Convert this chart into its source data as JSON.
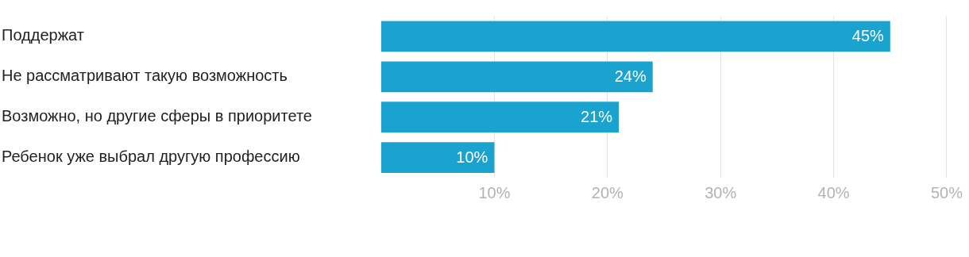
{
  "chart_data": {
    "type": "bar",
    "orientation": "horizontal",
    "categories": [
      "Поддержат",
      "Не рассматривают такую возможность",
      "Возможно, но другие сферы в приоритете",
      "Ребенок уже выбрал другую профессию"
    ],
    "values": [
      45,
      24,
      21,
      10
    ],
    "value_labels": [
      "45%",
      "24%",
      "21%",
      "10%"
    ],
    "color": "#1ba3cf",
    "xlim": [
      0,
      50
    ],
    "xticks": [
      {
        "value": 10,
        "label": "10%"
      },
      {
        "value": 20,
        "label": "20%"
      },
      {
        "value": 30,
        "label": "30%"
      },
      {
        "value": 40,
        "label": "40%"
      },
      {
        "value": 50,
        "label": "50%"
      }
    ],
    "grid": "x",
    "legend": false
  }
}
